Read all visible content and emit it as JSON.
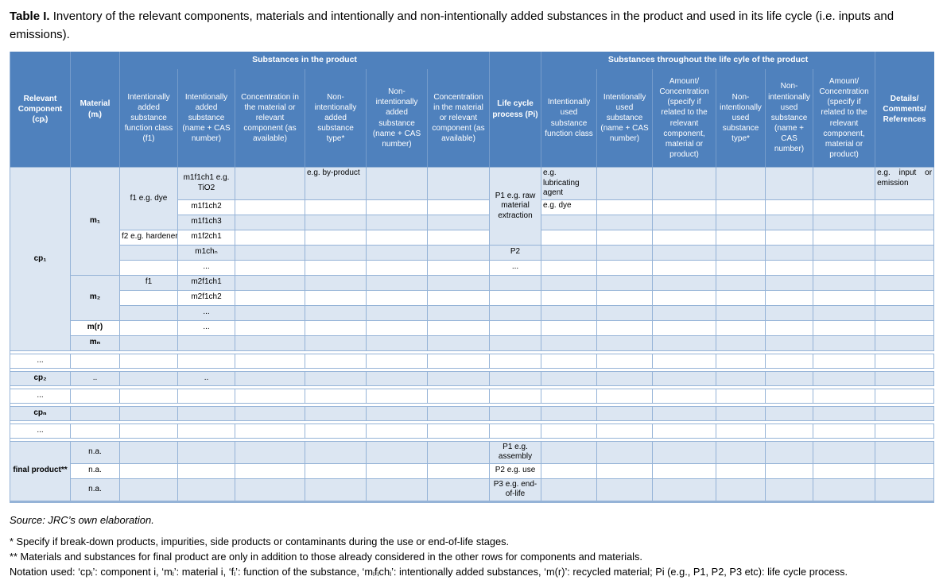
{
  "title": {
    "label": "Table I.",
    "text": "Inventory of the relevant components, materials and intentionally and non-intentionally added substances in the product and used in its life cycle (i.e. inputs and emissions)."
  },
  "colors": {
    "header_bg": "#4f81bd",
    "header_text": "#ffffff",
    "row_shade": "#dce6f2",
    "grid": "#95b3d7"
  },
  "table": {
    "header_top": [
      {
        "label": "Relevant Component (cpᵢ)",
        "rowspan": 2,
        "bold": true,
        "name": "col-relevant-component"
      },
      {
        "label": "Material (mᵢ)",
        "rowspan": 2,
        "bold": true,
        "name": "col-material"
      },
      {
        "label": "Substances in the product",
        "colspan": 6,
        "bold": true,
        "group": true,
        "name": "group-substances-in-product"
      },
      {
        "label": "Life cycle process (Pi)",
        "rowspan": 2,
        "bold": true,
        "name": "col-life-cycle-process"
      },
      {
        "label": "Substances throughout the life cyle of the product",
        "colspan": 6,
        "bold": true,
        "group": true,
        "name": "group-substances-life-cycle"
      },
      {
        "label": "Details/\nComments/\nReferences",
        "rowspan": 2,
        "bold": true,
        "name": "col-details-comments-references"
      }
    ],
    "header_sub": [
      {
        "label": "Intentionally added substance function class (f1)",
        "name": "col-intentionally-added-function-class"
      },
      {
        "label": "Intentionally added substance (name + CAS number)",
        "name": "col-intentionally-added-substance"
      },
      {
        "label": "Concentration in the material or relevant component (as available)",
        "name": "col-concentration-in-material"
      },
      {
        "label": "Non-intentionally added substance type*",
        "name": "col-non-intentionally-added-type"
      },
      {
        "label": "Non-intentionally added substance (name + CAS number)",
        "name": "col-non-intentionally-added-substance"
      },
      {
        "label": "Concentration in the material or relevant component (as available)",
        "name": "col-concentration-in-material-2"
      },
      {
        "label": "Intentionally used substance function class",
        "name": "col-intentionally-used-function-class"
      },
      {
        "label": "Intentionally used substance (name + CAS number)",
        "name": "col-intentionally-used-substance"
      },
      {
        "label": "Amount/ Concentration (specify if related to the relevant component, material or product)",
        "name": "col-amount-concentration"
      },
      {
        "label": "Non-intentionally used substance type*",
        "name": "col-non-intentionally-used-type"
      },
      {
        "label": "Non-intentionally used substance (name + CAS number)",
        "name": "col-non-intentionally-used-substance"
      },
      {
        "label": "Amount/ Concentration (specify if related to the relevant component, material or product)",
        "name": "col-amount-concentration-2"
      }
    ],
    "rows": [
      {
        "shade": "light",
        "h": 27,
        "cells": [
          {
            "t": "cp₁",
            "b": true,
            "rs": 11,
            "bg": "light",
            "n": "cell-cp1"
          },
          {
            "t": "m₁",
            "b": true,
            "rs": 6,
            "bg": "light",
            "n": "cell-m1"
          },
          {
            "t": "f1 e.g. dye",
            "rs": 3,
            "bg": "light",
            "n": "cell-f1-dye"
          },
          {
            "t": "m1f1ch1 e.g. TiO2",
            "n": "cell-m1f1ch1"
          },
          {},
          {
            "t": "e.g. by-product",
            "al": "left",
            "n": "cell-byproduct-example"
          },
          {},
          {},
          {
            "t": "P1 e.g. raw material extraction",
            "rs": 4,
            "bg": "light",
            "n": "cell-p1-raw-material-extraction"
          },
          {
            "t": "e.g. lubricating agent",
            "al": "justify",
            "n": "cell-lubricating-agent-example"
          },
          {},
          {},
          {},
          {},
          {},
          {
            "t": "e.g. input or emission",
            "al": "justify",
            "n": "cell-input-or-emission-example"
          }
        ]
      },
      {
        "shade": "white",
        "cells": [
          {
            "t": "m1f1ch2",
            "n": "cell-m1f1ch2"
          },
          {},
          {},
          {},
          {},
          {
            "t": "e.g. dye",
            "al": "left",
            "n": "cell-dye-example"
          },
          {},
          {},
          {},
          {},
          {},
          {}
        ]
      },
      {
        "shade": "light",
        "cells": [
          {
            "t": "m1f1ch3",
            "n": "cell-m1f1ch3"
          },
          {},
          {},
          {},
          {},
          {},
          {},
          {},
          {},
          {},
          {},
          {}
        ]
      },
      {
        "shade": "white",
        "cells": [
          {
            "t": "f2 e.g. hardener",
            "nw": true,
            "n": "cell-f2-hardener"
          },
          {
            "t": "m1f2ch1",
            "n": "cell-m1f2ch1"
          },
          {},
          {},
          {},
          {},
          {},
          {},
          {},
          {},
          {},
          {},
          {}
        ]
      },
      {
        "shade": "light",
        "cells": [
          {},
          {
            "t": "m1chₙ",
            "n": "cell-m1chn"
          },
          {},
          {},
          {},
          {},
          {
            "t": "P2",
            "n": "cell-p2"
          },
          {},
          {},
          {},
          {},
          {},
          {},
          {}
        ]
      },
      {
        "shade": "white",
        "cells": [
          {},
          {
            "t": "...",
            "n": "cell-ellipsis"
          },
          {},
          {},
          {},
          {},
          {
            "t": "...",
            "n": "cell-ellipsis"
          },
          {},
          {},
          {},
          {},
          {},
          {},
          {}
        ]
      },
      {
        "shade": "light",
        "cells": [
          {
            "t": "m₂",
            "b": true,
            "rs": 3,
            "bg": "light",
            "n": "cell-m2"
          },
          {
            "t": "f1",
            "n": "cell-f1"
          },
          {
            "t": "m2f1ch1",
            "n": "cell-m2f1ch1"
          },
          {},
          {},
          {},
          {},
          {},
          {},
          {},
          {},
          {},
          {},
          {},
          {}
        ]
      },
      {
        "shade": "white",
        "cells": [
          {},
          {
            "t": "m2f1ch2",
            "n": "cell-m2f1ch2"
          },
          {},
          {},
          {},
          {},
          {},
          {},
          {},
          {},
          {},
          {},
          {},
          {}
        ]
      },
      {
        "shade": "light",
        "cells": [
          {},
          {
            "t": "...",
            "n": "cell-ellipsis"
          },
          {},
          {},
          {},
          {},
          {},
          {},
          {},
          {},
          {},
          {},
          {},
          {}
        ]
      },
      {
        "shade": "white",
        "cells": [
          {
            "t": "m(r)",
            "b": true,
            "n": "cell-mr"
          },
          {},
          {
            "t": "...",
            "n": "cell-ellipsis"
          },
          {},
          {},
          {},
          {},
          {},
          {},
          {},
          {},
          {},
          {},
          {},
          {}
        ]
      },
      {
        "shade": "light",
        "cells": [
          {
            "t": "mₙ",
            "b": true,
            "n": "cell-mn"
          },
          {},
          {},
          {},
          {},
          {},
          {},
          {},
          {},
          {},
          {},
          {},
          {},
          {},
          {}
        ]
      },
      {
        "shade": "white",
        "sep": true,
        "cells": [
          {
            "t": "...",
            "n": "cell-ellipsis"
          },
          {},
          {},
          {},
          {},
          {},
          {},
          {},
          {},
          {},
          {},
          {},
          {},
          {},
          {},
          {}
        ]
      },
      {
        "shade": "light",
        "sep": true,
        "cells": [
          {
            "t": "cp₂",
            "b": true,
            "n": "cell-cp2"
          },
          {
            "t": "..",
            "n": "cell-dots"
          },
          {},
          {
            "t": "..",
            "n": "cell-dots"
          },
          {},
          {},
          {},
          {},
          {},
          {},
          {},
          {},
          {},
          {},
          {},
          {}
        ]
      },
      {
        "shade": "white",
        "sep": true,
        "cells": [
          {
            "t": "...",
            "n": "cell-ellipsis"
          },
          {},
          {},
          {},
          {},
          {},
          {},
          {},
          {},
          {},
          {},
          {},
          {},
          {},
          {},
          {}
        ]
      },
      {
        "shade": "light",
        "sep": true,
        "cells": [
          {
            "t": "cpₙ",
            "b": true,
            "n": "cell-cpn"
          },
          {},
          {},
          {},
          {},
          {},
          {},
          {},
          {},
          {},
          {},
          {},
          {},
          {},
          {},
          {}
        ]
      },
      {
        "shade": "white",
        "sep": true,
        "cells": [
          {
            "t": "...",
            "n": "cell-ellipsis"
          },
          {},
          {},
          {},
          {},
          {},
          {},
          {},
          {},
          {},
          {},
          {},
          {},
          {},
          {},
          {}
        ]
      },
      {
        "shade": "light",
        "sep": true,
        "h": 27,
        "cells": [
          {
            "t": "final product**",
            "b": true,
            "rs": 3,
            "bg": "light",
            "nw": true,
            "n": "cell-final-product"
          },
          {
            "t": "n.a.",
            "n": "cell-na"
          },
          {},
          {},
          {},
          {},
          {},
          {},
          {
            "t": "P1 e.g. assembly",
            "n": "cell-p1-assembly"
          },
          {},
          {},
          {},
          {},
          {},
          {},
          {}
        ]
      },
      {
        "shade": "white",
        "cells": [
          {
            "t": "n.a.",
            "n": "cell-na"
          },
          {},
          {},
          {},
          {},
          {},
          {},
          {
            "t": "P2 e.g. use",
            "n": "cell-p2-use"
          },
          {},
          {},
          {},
          {},
          {},
          {},
          {}
        ]
      },
      {
        "shade": "light",
        "h": 27,
        "cells": [
          {
            "t": "n.a.",
            "n": "cell-na"
          },
          {},
          {},
          {},
          {},
          {},
          {},
          {
            "t": "P3 e.g. end-of-life",
            "n": "cell-p3-end-of-life"
          },
          {},
          {},
          {},
          {},
          {},
          {},
          {}
        ]
      }
    ]
  },
  "footer": {
    "source": "Source: JRC’s own elaboration.",
    "fn1": "* Specify if break-down products, impurities, side products or contaminants during the use or end-of-life stages.",
    "fn2": "** Materials and substances for final product are only in addition to those already considered in the other rows for components and materials.",
    "fn3": "Notation used: ‘cpᵢ’: component i, ‘mᵢ’: material i, ‘fᵢ’: function of the substance, ‘mᵢfᵢchᵢ’: intentionally added substances, ‘m(r)’: recycled material; Pi (e.g., P1, P2, P3 etc): life cycle process."
  }
}
